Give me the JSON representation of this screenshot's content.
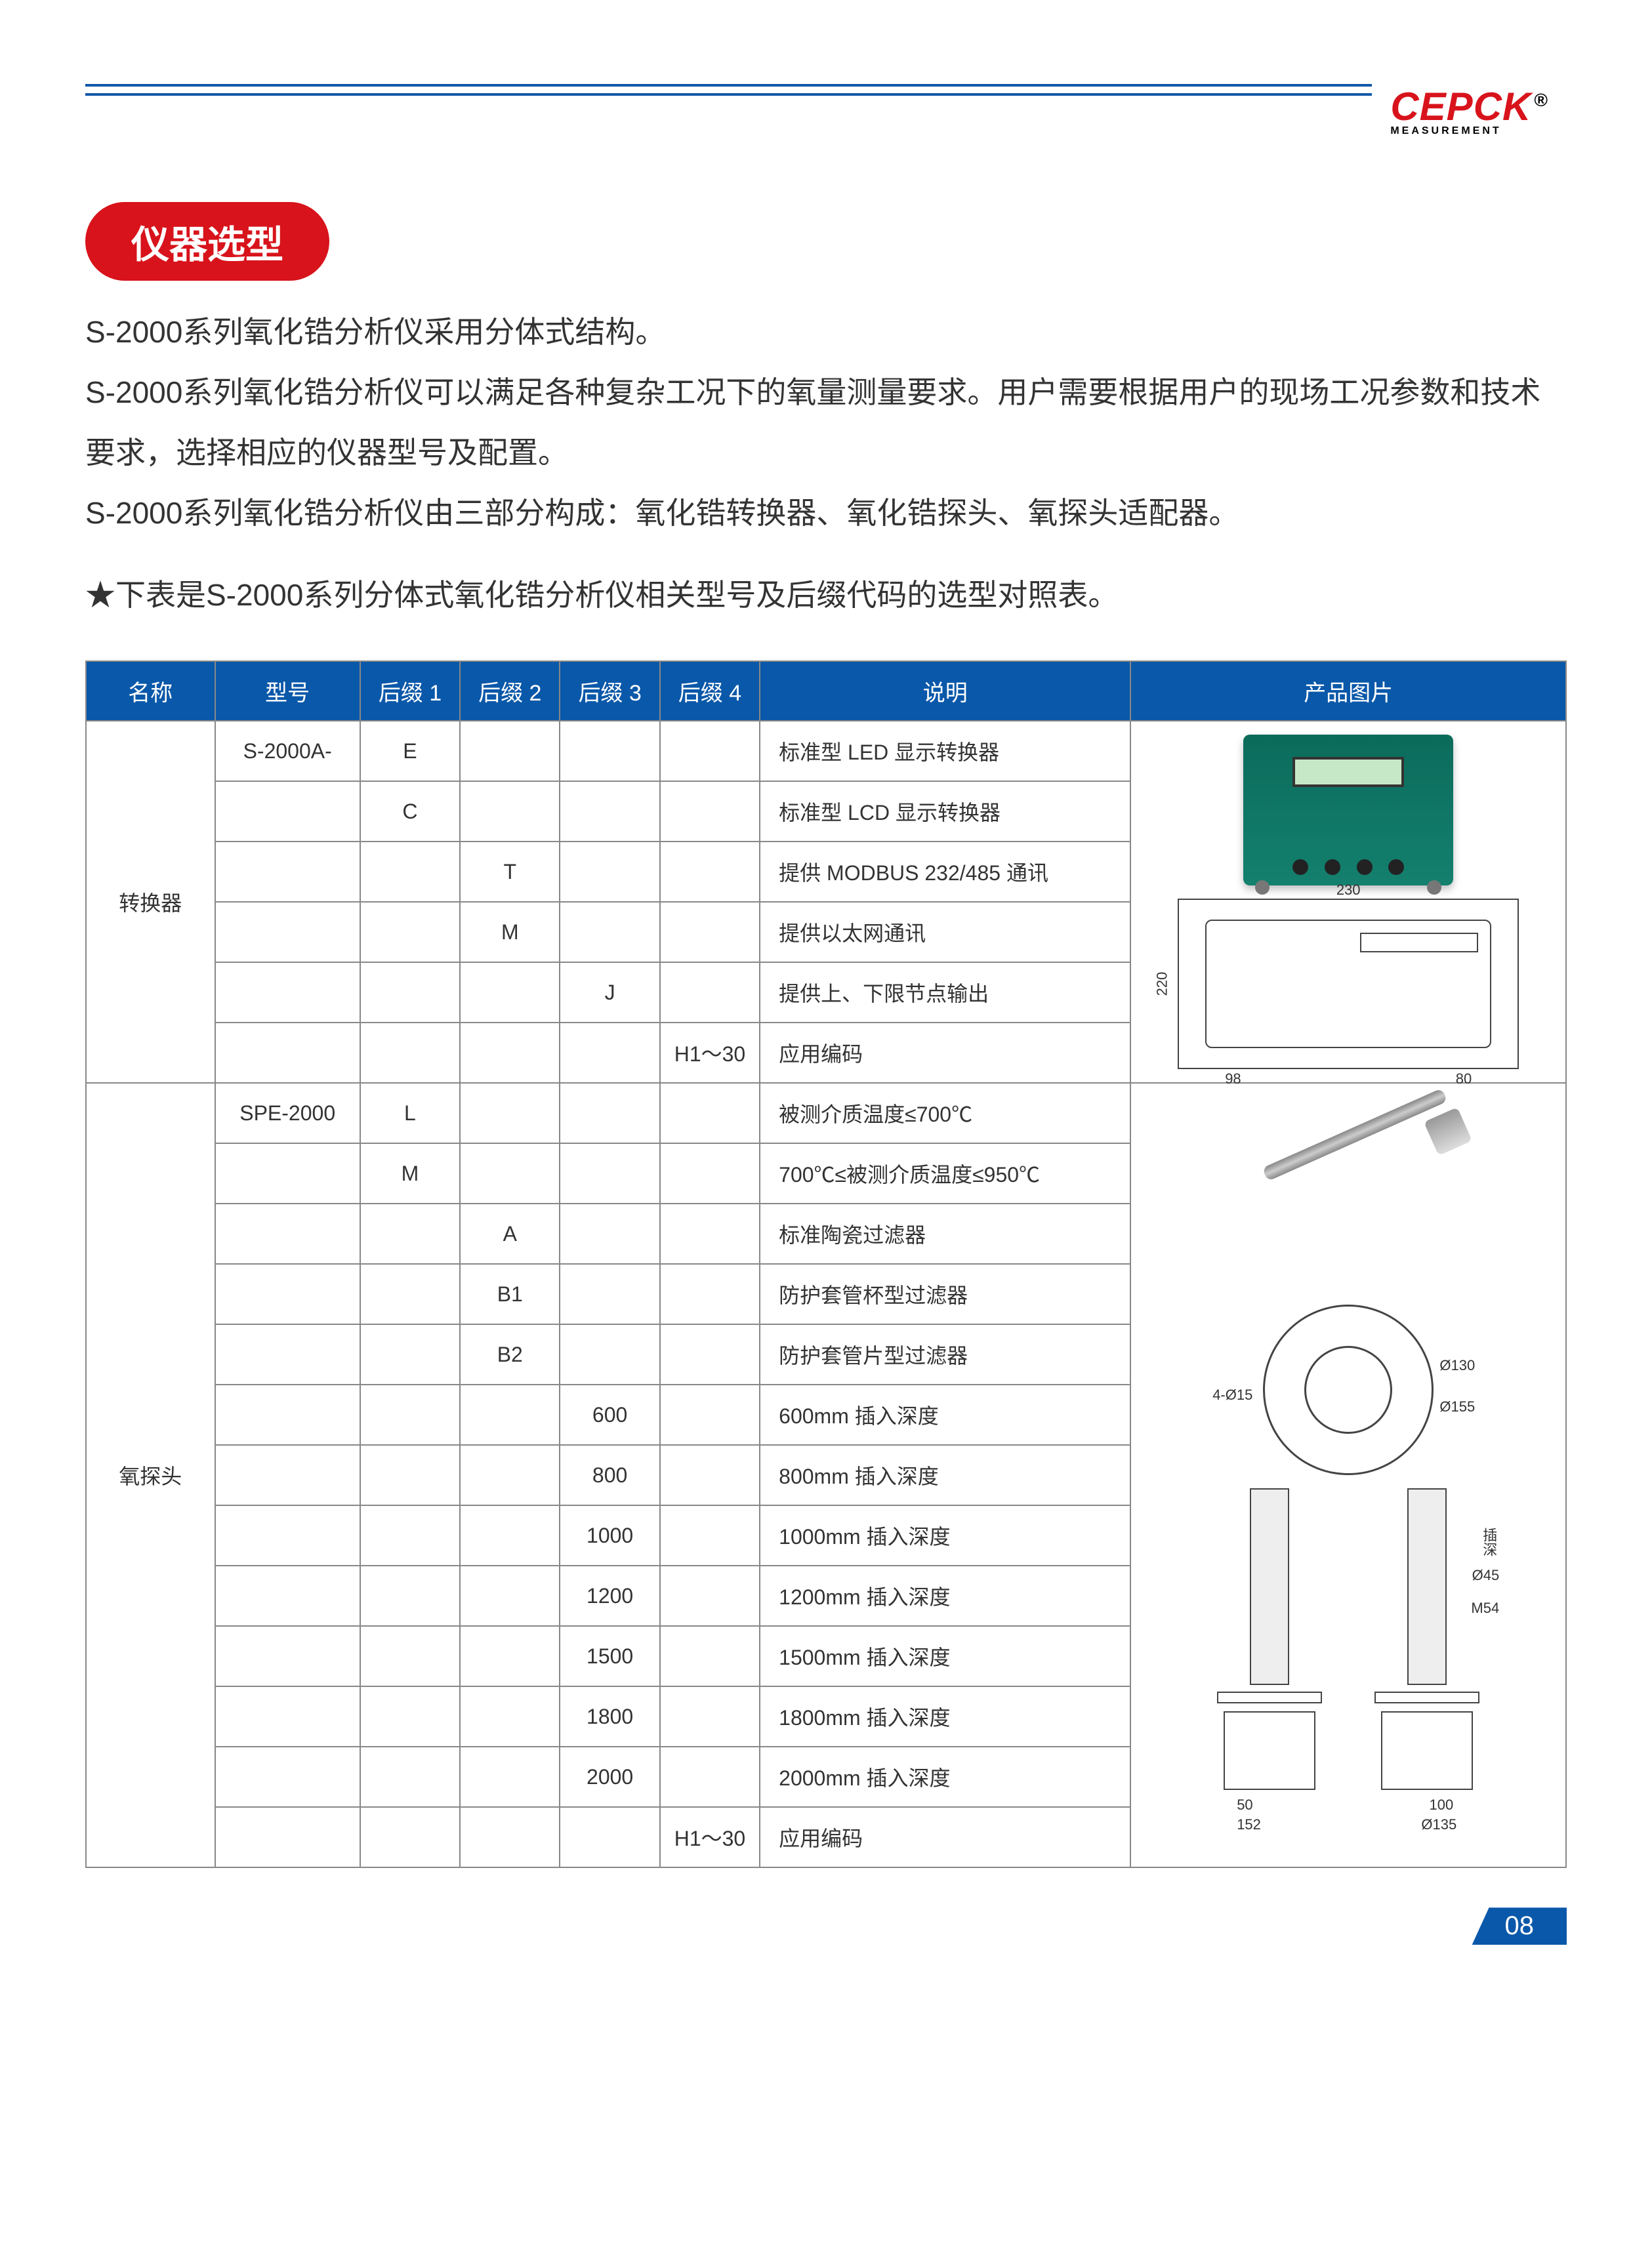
{
  "brand": {
    "name": "CEPCK",
    "tagline": "MEASUREMENT",
    "reg": "®"
  },
  "section_title": "仪器选型",
  "intro_lines": [
    "S-2000系列氧化锆分析仪采用分体式结构。",
    "S-2000系列氧化锆分析仪可以满足各种复杂工况下的氧量测量要求。用户需要根据用户的现场工况参数和技术要求，选择相应的仪器型号及配置。",
    "S-2000系列氧化锆分析仪由三部分构成：氧化锆转换器、氧化锆探头、氧探头适配器。"
  ],
  "star_note": "★下表是S-2000系列分体式氧化锆分析仪相关型号及后缀代码的选型对照表。",
  "table": {
    "headers": [
      "名称",
      "型号",
      "后缀 1",
      "后缀 2",
      "后缀 3",
      "后缀 4",
      "说明",
      "产品图片"
    ],
    "group1": {
      "name": "转换器",
      "rows": [
        {
          "model": "S-2000A-",
          "s1": "E",
          "s2": "",
          "s3": "",
          "s4": "",
          "desc": "标准型 LED 显示转换器"
        },
        {
          "model": "",
          "s1": "C",
          "s2": "",
          "s3": "",
          "s4": "",
          "desc": "标准型 LCD 显示转换器"
        },
        {
          "model": "",
          "s1": "",
          "s2": "T",
          "s3": "",
          "s4": "",
          "desc": "提供 MODBUS 232/485 通讯"
        },
        {
          "model": "",
          "s1": "",
          "s2": "M",
          "s3": "",
          "s4": "",
          "desc": "提供以太网通讯"
        },
        {
          "model": "",
          "s1": "",
          "s2": "",
          "s3": "J",
          "s4": "",
          "desc": "提供上、下限节点输出"
        },
        {
          "model": "",
          "s1": "",
          "s2": "",
          "s3": "",
          "s4": "H1～30",
          "desc": "应用编码"
        }
      ],
      "drawing_dims": {
        "w": "230",
        "h": "220",
        "bl": "98",
        "br": "80"
      }
    },
    "group2": {
      "name": "氧探头",
      "rows": [
        {
          "model": "SPE-2000",
          "s1": "L",
          "s2": "",
          "s3": "",
          "s4": "",
          "desc": "被测介质温度≤700℃"
        },
        {
          "model": "",
          "s1": "M",
          "s2": "",
          "s3": "",
          "s4": "",
          "desc": "700℃≤被测介质温度≤950℃"
        },
        {
          "model": "",
          "s1": "",
          "s2": "A",
          "s3": "",
          "s4": "",
          "desc": "标准陶瓷过滤器"
        },
        {
          "model": "",
          "s1": "",
          "s2": "B1",
          "s3": "",
          "s4": "",
          "desc": "防护套管杯型过滤器"
        },
        {
          "model": "",
          "s1": "",
          "s2": "B2",
          "s3": "",
          "s4": "",
          "desc": "防护套管片型过滤器"
        },
        {
          "model": "",
          "s1": "",
          "s2": "",
          "s3": "600",
          "s4": "",
          "desc": "600mm 插入深度"
        },
        {
          "model": "",
          "s1": "",
          "s2": "",
          "s3": "800",
          "s4": "",
          "desc": "800mm 插入深度"
        },
        {
          "model": "",
          "s1": "",
          "s2": "",
          "s3": "1000",
          "s4": "",
          "desc": "1000mm 插入深度"
        },
        {
          "model": "",
          "s1": "",
          "s2": "",
          "s3": "1200",
          "s4": "",
          "desc": "1200mm 插入深度"
        },
        {
          "model": "",
          "s1": "",
          "s2": "",
          "s3": "1500",
          "s4": "",
          "desc": "1500mm 插入深度"
        },
        {
          "model": "",
          "s1": "",
          "s2": "",
          "s3": "1800",
          "s4": "",
          "desc": "1800mm 插入深度"
        },
        {
          "model": "",
          "s1": "",
          "s2": "",
          "s3": "2000",
          "s4": "",
          "desc": "2000mm 插入深度"
        },
        {
          "model": "",
          "s1": "",
          "s2": "",
          "s3": "",
          "s4": "H1～30",
          "desc": "应用编码"
        }
      ],
      "flange_dims": {
        "d1": "Ø130",
        "d2": "Ø155",
        "d3": "4-Ø15"
      },
      "assy_dims": {
        "d45": "Ø45",
        "m54": "M54",
        "dep": "插深",
        "d50": "50",
        "d100": "100",
        "d152": "152",
        "d135": "Ø135",
        "d50b": "50"
      }
    }
  },
  "page_number": "08",
  "colors": {
    "brand_red": "#d8131b",
    "header_blue": "#0a58a9",
    "rule_blue": "#1158a8",
    "device_green": "#14806e"
  }
}
